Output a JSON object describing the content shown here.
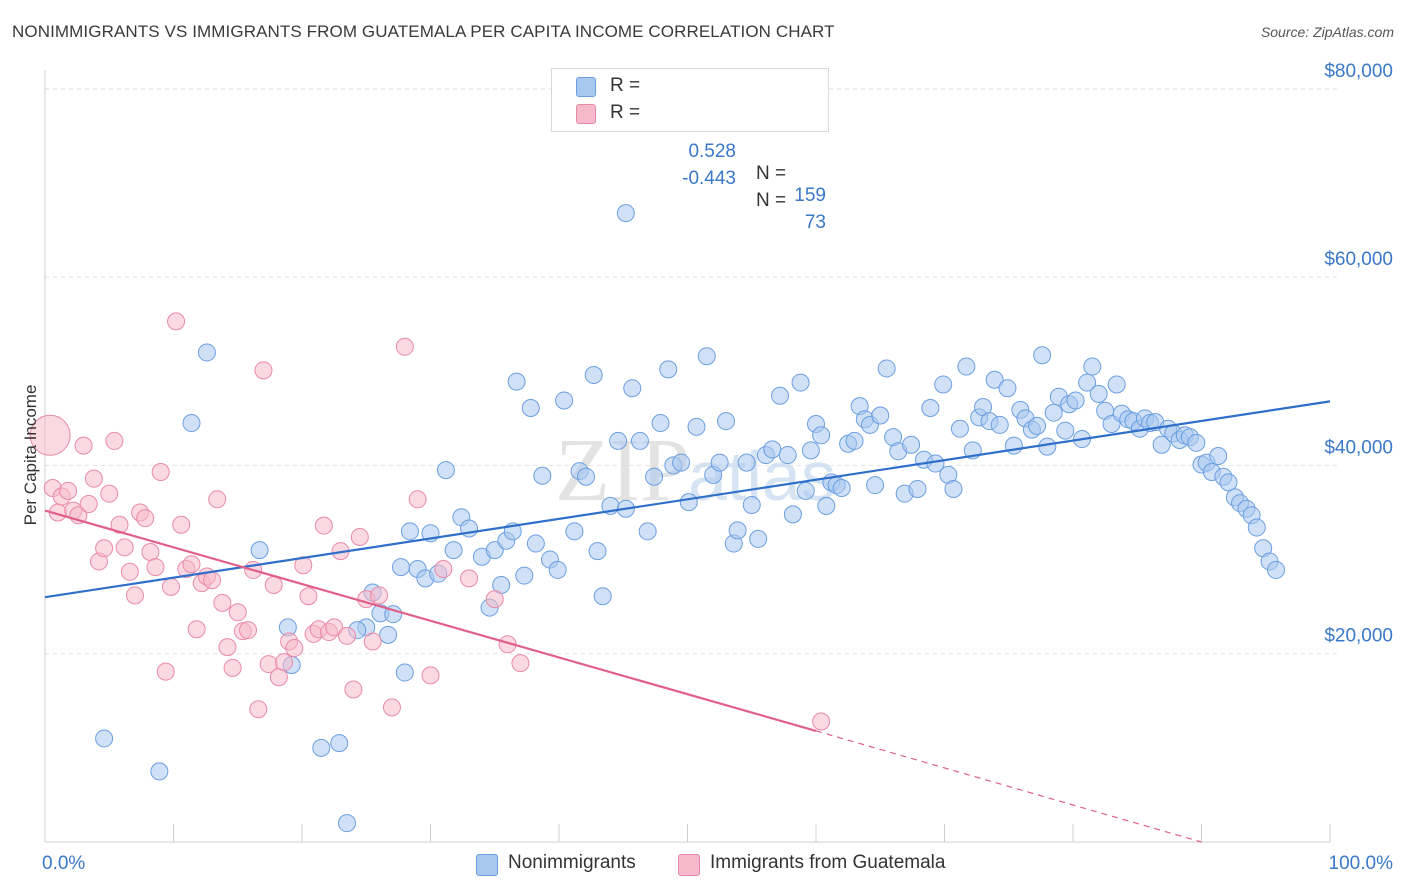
{
  "title": "NONIMMIGRANTS VS IMMIGRANTS FROM GUATEMALA PER CAPITA INCOME CORRELATION CHART",
  "source": "Source: ZipAtlas.com",
  "watermark": {
    "zip": "ZIP",
    "atlas": "atlas"
  },
  "legend_top": [
    {
      "r_label": "R =",
      "r_value": "0.528",
      "n_label": "N =",
      "n_value": "159",
      "color": "#a9c8f0"
    },
    {
      "r_label": "R =",
      "r_value": "-0.443",
      "n_label": "N =",
      "n_value": "73",
      "color": "#f5b9cb"
    }
  ],
  "legend_bottom": [
    {
      "label": "Nonimmigrants",
      "color": "#a9c8f0"
    },
    {
      "label": "Immigrants from Guatemala",
      "color": "#f5b9cb"
    }
  ],
  "chart_data": {
    "type": "scatter",
    "title": "NONIMMIGRANTS VS IMMIGRANTS FROM GUATEMALA PER CAPITA INCOME CORRELATION CHART",
    "xlabel": "",
    "ylabel": "Per Capita Income",
    "x_tick_labels": [
      "0.0%",
      "100.0%"
    ],
    "y_tick_labels": [
      "$20,000",
      "$40,000",
      "$60,000",
      "$80,000"
    ],
    "y_ticks": [
      20000,
      40000,
      60000,
      80000
    ],
    "xlim": [
      0,
      100
    ],
    "ylim": [
      0,
      82000
    ],
    "grid": true,
    "legend_placement": "bottom",
    "colors": {
      "blue_fill": "#a9c8f0",
      "blue_stroke": "#6b9fe0",
      "blue_line": "#2f6fc9",
      "pink_fill": "#f5b9cb",
      "pink_stroke": "#e98aa8",
      "pink_line": "#e0608a"
    },
    "series": [
      {
        "name": "Nonimmigrants",
        "trend": {
          "x": [
            0,
            100
          ],
          "y": [
            26000,
            46800
          ],
          "dashed_from": null
        },
        "points": [
          [
            4.6,
            11000
          ],
          [
            8.9,
            7500
          ],
          [
            12.6,
            52000
          ],
          [
            11.4,
            44500
          ],
          [
            16.7,
            31000
          ],
          [
            19.2,
            18800
          ],
          [
            18.9,
            22800
          ],
          [
            21.5,
            10000
          ],
          [
            22.9,
            10500
          ],
          [
            23.5,
            2000
          ],
          [
            25.5,
            26500
          ],
          [
            26.1,
            24300
          ],
          [
            25.0,
            22800
          ],
          [
            24.3,
            22500
          ],
          [
            26.7,
            22000
          ],
          [
            27.1,
            24200
          ],
          [
            27.7,
            29200
          ],
          [
            28.0,
            18000
          ],
          [
            28.4,
            33000
          ],
          [
            29.0,
            29000
          ],
          [
            29.6,
            28000
          ],
          [
            30.0,
            32800
          ],
          [
            30.6,
            28500
          ],
          [
            31.2,
            39500
          ],
          [
            31.8,
            31000
          ],
          [
            32.4,
            34500
          ],
          [
            33.0,
            33300
          ],
          [
            34.0,
            30300
          ],
          [
            34.6,
            24900
          ],
          [
            35.0,
            31000
          ],
          [
            35.5,
            27300
          ],
          [
            35.9,
            32000
          ],
          [
            36.4,
            33000
          ],
          [
            36.7,
            48900
          ],
          [
            37.3,
            28300
          ],
          [
            37.8,
            46100
          ],
          [
            38.2,
            31700
          ],
          [
            38.7,
            38900
          ],
          [
            39.3,
            30000
          ],
          [
            39.9,
            28900
          ],
          [
            40.4,
            46900
          ],
          [
            41.2,
            33000
          ],
          [
            41.6,
            39400
          ],
          [
            42.1,
            38800
          ],
          [
            42.7,
            49600
          ],
          [
            43.0,
            30900
          ],
          [
            43.4,
            26100
          ],
          [
            44.0,
            35700
          ],
          [
            44.6,
            42600
          ],
          [
            45.2,
            35400
          ],
          [
            45.7,
            48200
          ],
          [
            46.3,
            42600
          ],
          [
            46.9,
            33000
          ],
          [
            47.4,
            38800
          ],
          [
            47.9,
            44500
          ],
          [
            48.5,
            50200
          ],
          [
            48.9,
            40000
          ],
          [
            49.5,
            40300
          ],
          [
            50.1,
            36100
          ],
          [
            50.7,
            44100
          ],
          [
            51.5,
            51600
          ],
          [
            52.0,
            39000
          ],
          [
            52.5,
            40300
          ],
          [
            53.0,
            44700
          ],
          [
            53.6,
            31700
          ],
          [
            53.9,
            33100
          ],
          [
            54.6,
            40300
          ],
          [
            55.0,
            35800
          ],
          [
            55.5,
            32200
          ],
          [
            56.1,
            41100
          ],
          [
            56.6,
            41700
          ],
          [
            57.2,
            47400
          ],
          [
            57.8,
            41100
          ],
          [
            58.2,
            34800
          ],
          [
            58.8,
            48800
          ],
          [
            59.2,
            37300
          ],
          [
            59.6,
            41600
          ],
          [
            60.0,
            44400
          ],
          [
            60.4,
            43200
          ],
          [
            60.8,
            35700
          ],
          [
            61.2,
            38200
          ],
          [
            61.6,
            37900
          ],
          [
            62.0,
            37600
          ],
          [
            62.5,
            42300
          ],
          [
            63.0,
            42600
          ],
          [
            63.4,
            46300
          ],
          [
            63.8,
            44900
          ],
          [
            64.2,
            44300
          ],
          [
            64.6,
            37900
          ],
          [
            65.0,
            45300
          ],
          [
            65.5,
            50300
          ],
          [
            66.0,
            43000
          ],
          [
            66.4,
            41500
          ],
          [
            66.9,
            37000
          ],
          [
            67.4,
            42200
          ],
          [
            67.9,
            37500
          ],
          [
            68.4,
            40600
          ],
          [
            68.9,
            46100
          ],
          [
            69.3,
            40200
          ],
          [
            69.9,
            48600
          ],
          [
            70.3,
            39000
          ],
          [
            70.7,
            37500
          ],
          [
            71.2,
            43900
          ],
          [
            71.7,
            50500
          ],
          [
            72.2,
            41600
          ],
          [
            72.7,
            45100
          ],
          [
            73.0,
            46200
          ],
          [
            73.5,
            44700
          ],
          [
            73.9,
            49100
          ],
          [
            74.3,
            44300
          ],
          [
            74.9,
            48200
          ],
          [
            75.4,
            42100
          ],
          [
            75.9,
            45900
          ],
          [
            76.3,
            45000
          ],
          [
            76.8,
            43800
          ],
          [
            77.2,
            44200
          ],
          [
            77.6,
            51700
          ],
          [
            78.0,
            42000
          ],
          [
            78.5,
            45600
          ],
          [
            78.9,
            47300
          ],
          [
            79.4,
            43700
          ],
          [
            79.7,
            46500
          ],
          [
            80.2,
            46900
          ],
          [
            80.7,
            42800
          ],
          [
            81.1,
            48800
          ],
          [
            81.5,
            50500
          ],
          [
            82.0,
            47600
          ],
          [
            82.5,
            45800
          ],
          [
            83.0,
            44400
          ],
          [
            83.4,
            48600
          ],
          [
            83.8,
            45500
          ],
          [
            84.3,
            44900
          ],
          [
            84.7,
            44700
          ],
          [
            85.2,
            43900
          ],
          [
            85.6,
            45000
          ],
          [
            86.0,
            44500
          ],
          [
            86.4,
            44600
          ],
          [
            86.9,
            42200
          ],
          [
            87.4,
            43900
          ],
          [
            87.8,
            43400
          ],
          [
            88.3,
            42700
          ],
          [
            88.7,
            43200
          ],
          [
            89.1,
            43000
          ],
          [
            89.6,
            42400
          ],
          [
            90.0,
            40100
          ],
          [
            90.4,
            40300
          ],
          [
            90.8,
            39300
          ],
          [
            91.3,
            41000
          ],
          [
            91.7,
            38800
          ],
          [
            92.1,
            38200
          ],
          [
            92.6,
            36600
          ],
          [
            93.0,
            36000
          ],
          [
            93.5,
            35400
          ],
          [
            93.9,
            34700
          ],
          [
            94.3,
            33400
          ],
          [
            94.8,
            31200
          ],
          [
            95.3,
            29800
          ],
          [
            95.8,
            28900
          ],
          [
            45.2,
            66800
          ]
        ]
      },
      {
        "name": "Immigrants from Guatemala",
        "trend": {
          "x": [
            0,
            60
          ],
          "y": [
            35200,
            11800
          ],
          "dashed_from": 60,
          "dashed_to": [
            90,
            0
          ]
        },
        "points": [
          [
            0.4,
            43200
          ],
          [
            0.6,
            37600
          ],
          [
            1.0,
            35000
          ],
          [
            1.3,
            36700
          ],
          [
            1.8,
            37300
          ],
          [
            2.2,
            35200
          ],
          [
            2.6,
            34700
          ],
          [
            3.0,
            42100
          ],
          [
            3.4,
            35900
          ],
          [
            3.8,
            38600
          ],
          [
            4.2,
            29800
          ],
          [
            4.6,
            31200
          ],
          [
            5.0,
            37000
          ],
          [
            5.4,
            42600
          ],
          [
            5.8,
            33700
          ],
          [
            6.2,
            31300
          ],
          [
            6.6,
            28700
          ],
          [
            7.0,
            26200
          ],
          [
            7.4,
            35000
          ],
          [
            7.8,
            34400
          ],
          [
            8.2,
            30800
          ],
          [
            8.6,
            29200
          ],
          [
            9.0,
            39300
          ],
          [
            9.4,
            18100
          ],
          [
            9.8,
            27100
          ],
          [
            10.2,
            55300
          ],
          [
            10.6,
            33700
          ],
          [
            11.0,
            29000
          ],
          [
            11.4,
            29500
          ],
          [
            11.8,
            22600
          ],
          [
            12.2,
            27500
          ],
          [
            12.6,
            28200
          ],
          [
            13.0,
            27800
          ],
          [
            13.4,
            36400
          ],
          [
            13.8,
            25400
          ],
          [
            14.2,
            20700
          ],
          [
            14.6,
            18500
          ],
          [
            15.0,
            24400
          ],
          [
            15.4,
            22400
          ],
          [
            15.8,
            22500
          ],
          [
            16.2,
            28900
          ],
          [
            16.6,
            14100
          ],
          [
            17.0,
            50100
          ],
          [
            17.4,
            18900
          ],
          [
            17.8,
            27300
          ],
          [
            18.2,
            17500
          ],
          [
            18.6,
            19100
          ],
          [
            19.0,
            21300
          ],
          [
            19.4,
            20600
          ],
          [
            20.1,
            29400
          ],
          [
            20.5,
            26100
          ],
          [
            20.9,
            22100
          ],
          [
            21.3,
            22600
          ],
          [
            21.7,
            33600
          ],
          [
            22.1,
            22300
          ],
          [
            22.5,
            22800
          ],
          [
            23.0,
            30900
          ],
          [
            23.5,
            21900
          ],
          [
            24.0,
            16200
          ],
          [
            24.5,
            32400
          ],
          [
            25.0,
            25800
          ],
          [
            25.5,
            21300
          ],
          [
            26.0,
            26200
          ],
          [
            27.0,
            14300
          ],
          [
            28.0,
            52600
          ],
          [
            29.0,
            36400
          ],
          [
            30.0,
            17700
          ],
          [
            31.0,
            29000
          ],
          [
            33.0,
            28000
          ],
          [
            35.0,
            25800
          ],
          [
            36.0,
            21000
          ],
          [
            37.0,
            19000
          ],
          [
            60.4,
            12800
          ]
        ]
      }
    ]
  }
}
